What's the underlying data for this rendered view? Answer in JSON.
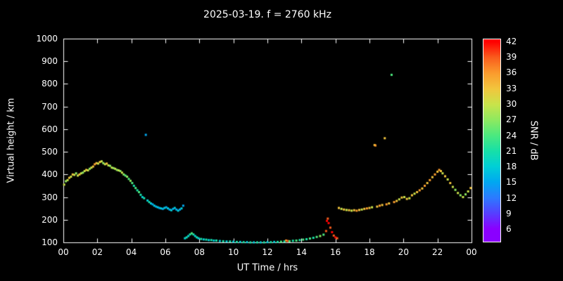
{
  "chart_data": {
    "type": "scatter",
    "title": "2025-03-19. f = 2760 kHz",
    "xlabel": "UT Time / hrs",
    "ylabel": "Virtual height / km",
    "colorbar_label": "SNR / dB",
    "xlim": [
      0,
      24
    ],
    "ylim": [
      100,
      1000
    ],
    "x_ticks": [
      "00",
      "02",
      "04",
      "06",
      "08",
      "10",
      "12",
      "14",
      "16",
      "18",
      "20",
      "22",
      "00"
    ],
    "y_ticks": [
      100,
      200,
      300,
      400,
      500,
      600,
      700,
      800,
      900,
      1000
    ],
    "colorbar_ticks": [
      42,
      39,
      36,
      33,
      30,
      27,
      24,
      21,
      18,
      15,
      12,
      9,
      6
    ],
    "colorbar_range": [
      3.5,
      42.5
    ],
    "background": "#000000",
    "foreground": "#ffffff",
    "colormap": [
      [
        6,
        "#8a00ff"
      ],
      [
        9,
        "#5540ff"
      ],
      [
        12,
        "#2b7bff"
      ],
      [
        15,
        "#00a8f0"
      ],
      [
        18,
        "#00cfd6"
      ],
      [
        21,
        "#17e0a7"
      ],
      [
        24,
        "#4ce97e"
      ],
      [
        27,
        "#8fe95f"
      ],
      [
        30,
        "#c9e34a"
      ],
      [
        33,
        "#f2c53d"
      ],
      [
        36,
        "#fb9b2d"
      ],
      [
        39,
        "#f95d1d"
      ],
      [
        42,
        "#ff0000"
      ]
    ],
    "points": [
      [
        0.05,
        355,
        30
      ],
      [
        0.15,
        370,
        27
      ],
      [
        0.25,
        375,
        30
      ],
      [
        0.35,
        385,
        33
      ],
      [
        0.45,
        390,
        30
      ],
      [
        0.55,
        400,
        33
      ],
      [
        0.65,
        398,
        30
      ],
      [
        0.75,
        405,
        27
      ],
      [
        0.85,
        395,
        30
      ],
      [
        0.95,
        400,
        33
      ],
      [
        1.05,
        405,
        30
      ],
      [
        1.15,
        408,
        27
      ],
      [
        1.25,
        415,
        30
      ],
      [
        1.35,
        420,
        33
      ],
      [
        1.45,
        418,
        30
      ],
      [
        1.55,
        425,
        27
      ],
      [
        1.65,
        430,
        30
      ],
      [
        1.75,
        435,
        33
      ],
      [
        1.85,
        445,
        36
      ],
      [
        1.95,
        450,
        33
      ],
      [
        2.05,
        448,
        30
      ],
      [
        2.15,
        455,
        33
      ],
      [
        2.25,
        458,
        30
      ],
      [
        2.35,
        450,
        27
      ],
      [
        2.45,
        445,
        30
      ],
      [
        2.55,
        448,
        33
      ],
      [
        2.65,
        440,
        30
      ],
      [
        2.75,
        438,
        27
      ],
      [
        2.85,
        430,
        30
      ],
      [
        2.95,
        428,
        27
      ],
      [
        3.05,
        425,
        30
      ],
      [
        3.15,
        420,
        27
      ],
      [
        3.25,
        418,
        30
      ],
      [
        3.35,
        415,
        27
      ],
      [
        3.45,
        408,
        30
      ],
      [
        3.55,
        400,
        27
      ],
      [
        3.65,
        395,
        24
      ],
      [
        3.75,
        390,
        27
      ],
      [
        3.85,
        380,
        24
      ],
      [
        3.95,
        372,
        27
      ],
      [
        4.05,
        362,
        24
      ],
      [
        4.15,
        350,
        21
      ],
      [
        4.25,
        340,
        24
      ],
      [
        4.35,
        330,
        21
      ],
      [
        4.45,
        322,
        24
      ],
      [
        4.55,
        310,
        21
      ],
      [
        4.65,
        300,
        18
      ],
      [
        4.75,
        295,
        21
      ],
      [
        4.85,
        575,
        15
      ],
      [
        4.95,
        285,
        18
      ],
      [
        5.05,
        278,
        21
      ],
      [
        5.15,
        272,
        18
      ],
      [
        5.25,
        268,
        15
      ],
      [
        5.35,
        262,
        18
      ],
      [
        5.45,
        258,
        15
      ],
      [
        5.55,
        255,
        18
      ],
      [
        5.65,
        252,
        15
      ],
      [
        5.75,
        250,
        18
      ],
      [
        5.85,
        248,
        15
      ],
      [
        5.95,
        252,
        18
      ],
      [
        6.05,
        255,
        15
      ],
      [
        6.15,
        250,
        18
      ],
      [
        6.25,
        245,
        15
      ],
      [
        6.35,
        242,
        18
      ],
      [
        6.45,
        248,
        15
      ],
      [
        6.55,
        252,
        18
      ],
      [
        6.65,
        245,
        15
      ],
      [
        6.75,
        240,
        18
      ],
      [
        6.85,
        245,
        15
      ],
      [
        6.95,
        250,
        18
      ],
      [
        7.05,
        262,
        15
      ],
      [
        7.15,
        118,
        18
      ],
      [
        7.25,
        122,
        21
      ],
      [
        7.35,
        128,
        18
      ],
      [
        7.45,
        135,
        21
      ],
      [
        7.55,
        140,
        24
      ],
      [
        7.65,
        135,
        21
      ],
      [
        7.75,
        128,
        18
      ],
      [
        7.85,
        122,
        21
      ],
      [
        7.95,
        118,
        18
      ],
      [
        8.1,
        115,
        21
      ],
      [
        8.25,
        113,
        18
      ],
      [
        8.4,
        112,
        21
      ],
      [
        8.55,
        110,
        18
      ],
      [
        8.7,
        110,
        21
      ],
      [
        8.85,
        108,
        18
      ],
      [
        9.0,
        108,
        21
      ],
      [
        9.2,
        106,
        18
      ],
      [
        9.4,
        105,
        21
      ],
      [
        9.6,
        104,
        18
      ],
      [
        9.8,
        104,
        21
      ],
      [
        10.0,
        103,
        18
      ],
      [
        10.2,
        102,
        21
      ],
      [
        10.4,
        102,
        18
      ],
      [
        10.6,
        101,
        21
      ],
      [
        10.8,
        101,
        18
      ],
      [
        11.0,
        100,
        21
      ],
      [
        11.2,
        100,
        18
      ],
      [
        11.4,
        100,
        21
      ],
      [
        11.6,
        100,
        18
      ],
      [
        11.8,
        100,
        21
      ],
      [
        12.0,
        101,
        18
      ],
      [
        12.2,
        101,
        21
      ],
      [
        12.4,
        102,
        18
      ],
      [
        12.6,
        102,
        21
      ],
      [
        12.8,
        103,
        24
      ],
      [
        13.0,
        104,
        21
      ],
      [
        13.1,
        108,
        36
      ],
      [
        13.2,
        106,
        39
      ],
      [
        13.3,
        105,
        24
      ],
      [
        13.5,
        107,
        21
      ],
      [
        13.7,
        108,
        24
      ],
      [
        13.9,
        110,
        21
      ],
      [
        14.1,
        112,
        24
      ],
      [
        14.3,
        114,
        21
      ],
      [
        14.5,
        117,
        24
      ],
      [
        14.7,
        120,
        21
      ],
      [
        14.9,
        124,
        24
      ],
      [
        15.1,
        128,
        27
      ],
      [
        15.3,
        134,
        24
      ],
      [
        15.45,
        150,
        39
      ],
      [
        15.5,
        195,
        42
      ],
      [
        15.55,
        205,
        39
      ],
      [
        15.6,
        185,
        42
      ],
      [
        15.7,
        165,
        39
      ],
      [
        15.8,
        145,
        42
      ],
      [
        15.9,
        130,
        39
      ],
      [
        16.0,
        122,
        42
      ],
      [
        16.1,
        118,
        39
      ],
      [
        16.2,
        252,
        33
      ],
      [
        16.35,
        248,
        30
      ],
      [
        16.5,
        245,
        33
      ],
      [
        16.65,
        243,
        30
      ],
      [
        16.8,
        242,
        33
      ],
      [
        16.95,
        240,
        30
      ],
      [
        17.1,
        242,
        33
      ],
      [
        17.25,
        240,
        36
      ],
      [
        17.4,
        243,
        33
      ],
      [
        17.55,
        245,
        30
      ],
      [
        17.7,
        248,
        33
      ],
      [
        17.85,
        250,
        36
      ],
      [
        18.0,
        252,
        33
      ],
      [
        18.15,
        255,
        30
      ],
      [
        18.3,
        530,
        33
      ],
      [
        18.35,
        528,
        36
      ],
      [
        18.45,
        258,
        33
      ],
      [
        18.6,
        262,
        36
      ],
      [
        18.75,
        265,
        33
      ],
      [
        18.9,
        560,
        33
      ],
      [
        19.0,
        268,
        36
      ],
      [
        19.15,
        272,
        33
      ],
      [
        19.3,
        840,
        24
      ],
      [
        19.45,
        278,
        36
      ],
      [
        19.6,
        283,
        33
      ],
      [
        19.75,
        290,
        30
      ],
      [
        19.9,
        298,
        33
      ],
      [
        20.05,
        300,
        30
      ],
      [
        20.2,
        292,
        33
      ],
      [
        20.35,
        295,
        30
      ],
      [
        20.5,
        308,
        33
      ],
      [
        20.65,
        315,
        30
      ],
      [
        20.8,
        322,
        33
      ],
      [
        20.95,
        330,
        36
      ],
      [
        21.1,
        338,
        33
      ],
      [
        21.25,
        350,
        36
      ],
      [
        21.4,
        362,
        33
      ],
      [
        21.55,
        375,
        36
      ],
      [
        21.7,
        388,
        33
      ],
      [
        21.85,
        400,
        36
      ],
      [
        22.0,
        412,
        33
      ],
      [
        22.1,
        420,
        36
      ],
      [
        22.2,
        415,
        33
      ],
      [
        22.3,
        405,
        30
      ],
      [
        22.45,
        392,
        33
      ],
      [
        22.6,
        378,
        30
      ],
      [
        22.75,
        362,
        33
      ],
      [
        22.9,
        345,
        30
      ],
      [
        23.05,
        332,
        27
      ],
      [
        23.2,
        318,
        30
      ],
      [
        23.35,
        308,
        27
      ],
      [
        23.5,
        300,
        30
      ],
      [
        23.65,
        312,
        27
      ],
      [
        23.8,
        325,
        30
      ],
      [
        23.95,
        340,
        33
      ]
    ]
  }
}
